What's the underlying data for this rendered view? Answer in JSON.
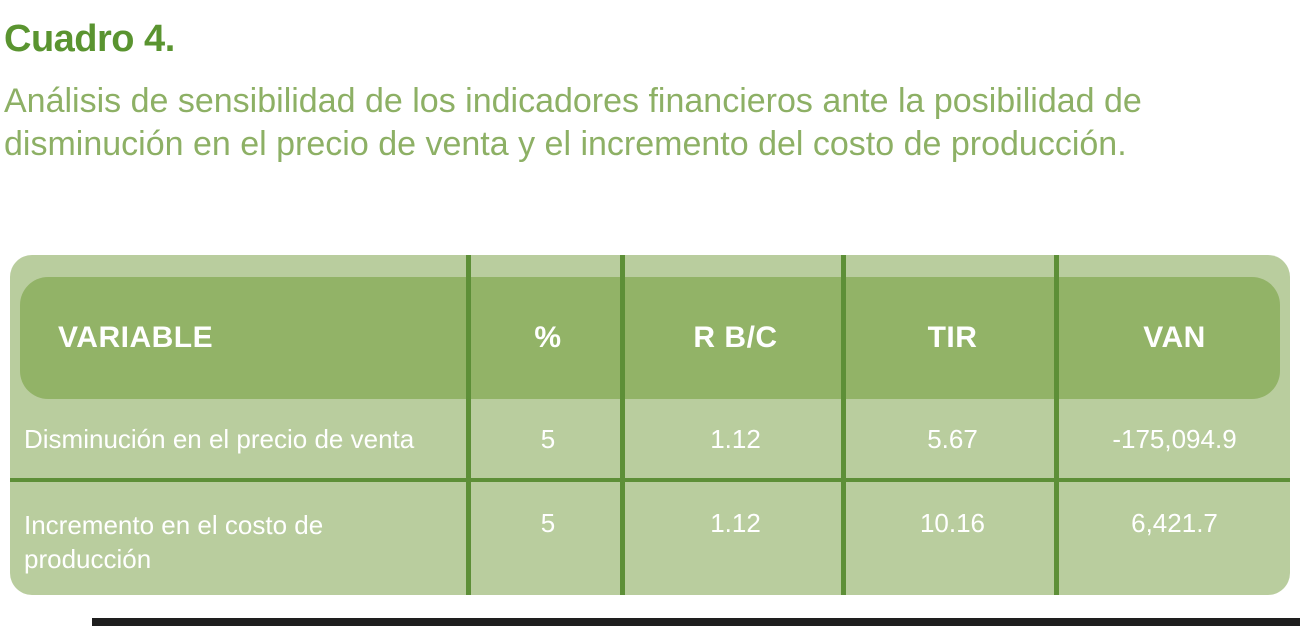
{
  "title": "Cuadro 4.",
  "subtitle": "Análisis de sensibilidad de los indicadores financieros ante la posibilidad de disminución en el precio de venta y el incremento del costo de producción.",
  "table": {
    "headers": [
      "VARIABLE",
      "%",
      "R B/C",
      "TIR",
      "VAN"
    ],
    "rows": [
      {
        "cells": [
          "Disminución en el precio de venta",
          "5",
          "1.12",
          "5.67",
          "-175,094.9"
        ]
      },
      {
        "cells": [
          "Incremento en el costo de producción",
          "5",
          "1.12",
          "10.16",
          "6,421.7"
        ]
      }
    ]
  },
  "colors": {
    "title_green": "#5a9430",
    "subtitle_green": "#8db065",
    "table_background": "#b9cd9e",
    "header_background": "#92b367",
    "divider_green": "#5d8f37",
    "cell_text": "#ffffff"
  }
}
